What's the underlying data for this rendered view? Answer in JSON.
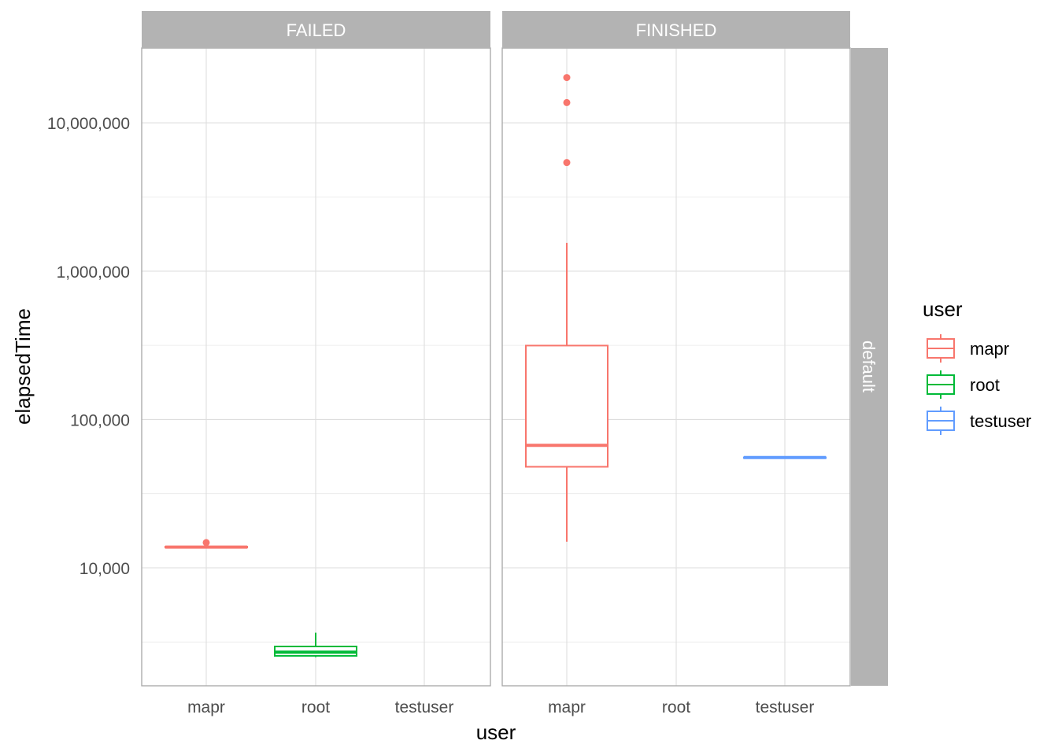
{
  "colors": {
    "mapr": "#F8766D",
    "root": "#00BA38",
    "testuser": "#619CFF",
    "strip": "#B3B3B3"
  },
  "chart_data": {
    "type": "boxplot",
    "title": "",
    "xlabel": "user",
    "ylabel": "elapsedTime",
    "y_scale": "log10",
    "ylim": [
      1500,
      35000000
    ],
    "y_ticks": [
      10000,
      100000,
      1000000,
      10000000
    ],
    "y_tick_labels": [
      "10,000",
      "100,000",
      "1,000,000",
      "10,000,000"
    ],
    "categories": [
      "mapr",
      "root",
      "testuser"
    ],
    "row_facet": "default",
    "grid": true,
    "legend": {
      "title": "user",
      "position": "right",
      "entries": [
        "mapr",
        "root",
        "testuser"
      ]
    },
    "facets": [
      {
        "label": "FAILED",
        "boxes": [
          {
            "user": "mapr",
            "min": 13600,
            "q1": 13700,
            "median": 13800,
            "q3": 13900,
            "max": 14000,
            "outliers": [
              14800
            ]
          },
          {
            "user": "root",
            "min": 2500,
            "q1": 2550,
            "median": 2700,
            "q3": 2950,
            "max": 3650,
            "outliers": []
          }
        ]
      },
      {
        "label": "FINISHED",
        "boxes": [
          {
            "user": "mapr",
            "min": 15000,
            "q1": 48000,
            "median": 67000,
            "q3": 315000,
            "max": 1550000,
            "outliers": [
              5400000,
              13700000,
              20200000
            ]
          },
          {
            "user": "testuser",
            "min": 55000,
            "q1": 55200,
            "median": 55400,
            "q3": 55600,
            "max": 55800,
            "outliers": []
          }
        ]
      }
    ]
  }
}
